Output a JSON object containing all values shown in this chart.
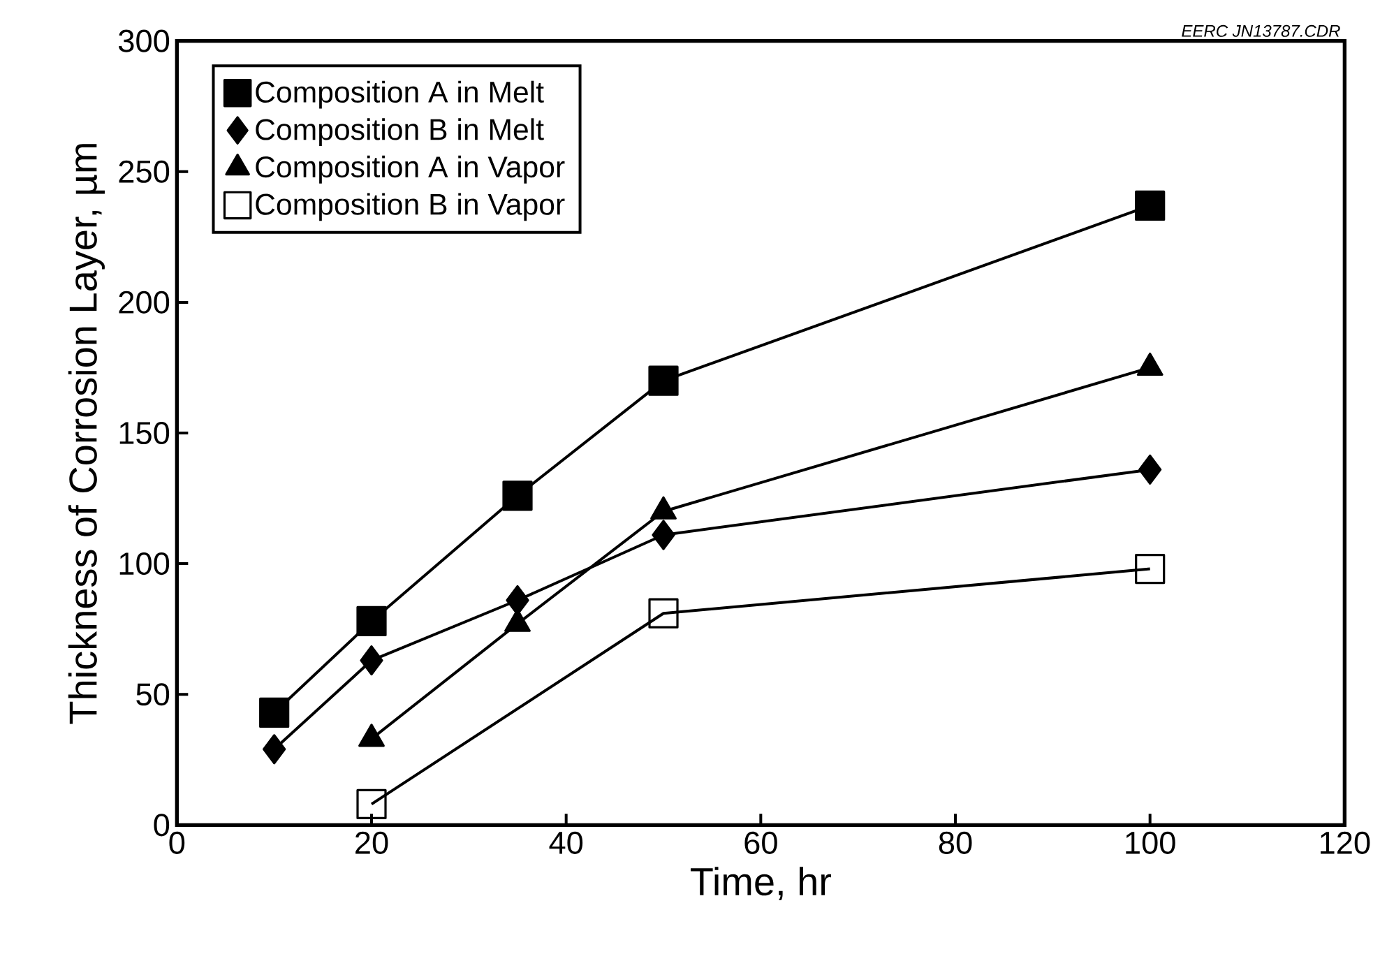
{
  "chart_data": {
    "type": "line",
    "xlabel": "Time, hr",
    "ylabel": "Thickness of Corrosion Layer, µm",
    "annotations": [
      "EERC JN13787.CDR"
    ],
    "xlim": [
      0,
      120
    ],
    "xticks": [
      0,
      20,
      40,
      60,
      80,
      100,
      120
    ],
    "ylim": [
      0,
      300
    ],
    "yticks": [
      0,
      50,
      100,
      150,
      200,
      250,
      300
    ],
    "grid": false,
    "legend": "top left",
    "line_style": "solid",
    "series": [
      {
        "name": "Composition A in Melt",
        "color": "#000000",
        "marker": "square",
        "x": [
          10,
          20,
          35,
          50,
          100
        ],
        "values": [
          43,
          78,
          126,
          170,
          237
        ]
      },
      {
        "name": "Composition B in Melt",
        "color": "#000000",
        "marker": "diamond",
        "x": [
          10,
          20,
          35,
          50,
          100
        ],
        "values": [
          29,
          63,
          86,
          111,
          136
        ]
      },
      {
        "name": "Composition A in Vapor",
        "color": "#000000",
        "marker": "triangle",
        "x": [
          20,
          35,
          50,
          100
        ],
        "values": [
          33,
          77,
          120,
          175
        ]
      },
      {
        "name": "Composition B in Vapor",
        "color": "#000000",
        "marker": "square",
        "x": [
          20,
          50,
          100
        ],
        "values": [
          8,
          81,
          98
        ]
      }
    ]
  }
}
